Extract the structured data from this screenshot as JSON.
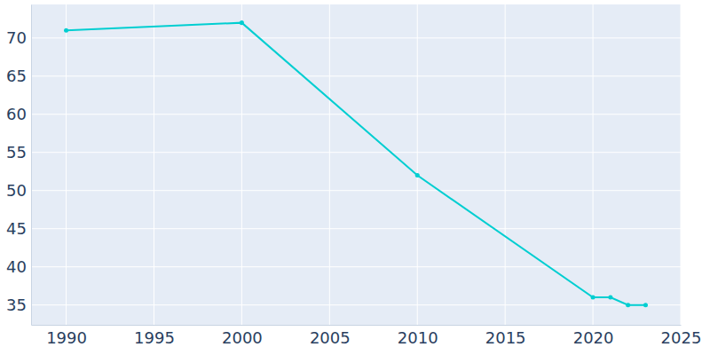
{
  "chart_data": {
    "type": "line",
    "x": [
      1990,
      2000,
      2010,
      2020,
      2021,
      2022,
      2023
    ],
    "values": [
      71,
      72,
      52,
      36,
      36,
      35,
      35
    ],
    "color": "#00ced1",
    "marker": "circle",
    "xlim": [
      1988,
      2025
    ],
    "xticks": [
      1990,
      1995,
      2000,
      2005,
      2010,
      2015,
      2020,
      2025
    ],
    "ylim": [
      32.4,
      74.4
    ],
    "yticks": [
      35,
      40,
      45,
      50,
      55,
      60,
      65,
      70
    ],
    "grid": true
  }
}
